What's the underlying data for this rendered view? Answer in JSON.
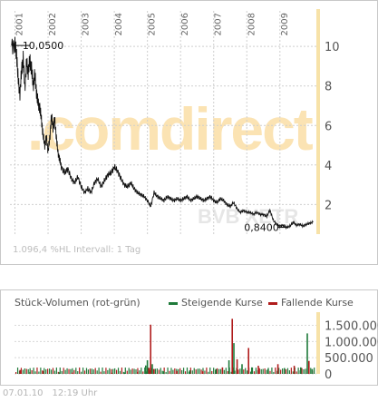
{
  "chart_data": [
    {
      "type": "line",
      "x_ticks": [
        "2001",
        "2002",
        "2003",
        "2004",
        "2005",
        "2006",
        "2007",
        "2008",
        "2009"
      ],
      "y_ticks": [
        2,
        4,
        6,
        8,
        10
      ],
      "ylim": [
        0.5,
        11.8
      ],
      "series": [
        {
          "x": [
            2000.9,
            2001.0,
            2001.05,
            2001.1,
            2001.15,
            2001.2,
            2001.25,
            2001.3,
            2001.35,
            2001.4,
            2001.45,
            2001.5,
            2001.55,
            2001.6,
            2001.65,
            2001.7,
            2001.75,
            2001.8,
            2001.85,
            2001.9,
            2001.95,
            2002.0,
            2002.05,
            2002.1,
            2002.15,
            2002.2,
            2002.25,
            2002.3,
            2002.35,
            2002.4,
            2002.5,
            2002.6,
            2002.7,
            2002.8,
            2002.9,
            2003.0,
            2003.1,
            2003.2,
            2003.3,
            2003.4,
            2003.5,
            2003.6,
            2003.7,
            2003.8,
            2003.9,
            2004.0,
            2004.1,
            2004.2,
            2004.3,
            2004.4,
            2004.5,
            2004.6,
            2004.7,
            2004.8,
            2004.9,
            2005.0,
            2005.1,
            2005.2,
            2005.3,
            2005.4,
            2005.5,
            2005.6,
            2005.7,
            2005.8,
            2005.9,
            2006.0,
            2006.1,
            2006.2,
            2006.3,
            2006.4,
            2006.5,
            2006.6,
            2006.7,
            2006.8,
            2006.9,
            2007.0,
            2007.1,
            2007.2,
            2007.3,
            2007.4,
            2007.5,
            2007.6,
            2007.7,
            2007.8,
            2007.9,
            2008.0,
            2008.1,
            2008.2,
            2008.3,
            2008.4,
            2008.5,
            2008.6,
            2008.7,
            2008.8,
            2008.9,
            2009.0,
            2009.1,
            2009.2,
            2009.3,
            2009.4,
            2009.5,
            2009.6,
            2009.7,
            2009.8,
            2009.9,
            2010.0
          ],
          "y": [
            10.05,
            10.05,
            9.6,
            8.3,
            7.6,
            8.8,
            9.4,
            7.9,
            9.2,
            8.7,
            9.3,
            8.9,
            8.0,
            8.6,
            7.7,
            7.1,
            6.9,
            6.3,
            5.5,
            5.0,
            5.4,
            4.7,
            5.3,
            6.5,
            5.9,
            6.3,
            5.4,
            4.6,
            4.3,
            3.9,
            3.6,
            3.8,
            3.3,
            3.1,
            3.4,
            2.9,
            2.6,
            2.8,
            2.6,
            3.1,
            3.3,
            2.9,
            3.2,
            3.5,
            3.6,
            3.9,
            3.7,
            3.3,
            3.0,
            2.9,
            3.1,
            2.8,
            2.6,
            2.5,
            2.4,
            2.2,
            1.9,
            2.6,
            2.4,
            2.3,
            2.2,
            2.4,
            2.3,
            2.2,
            2.3,
            2.2,
            2.3,
            2.4,
            2.2,
            2.3,
            2.4,
            2.3,
            2.2,
            2.3,
            2.4,
            2.2,
            2.1,
            2.3,
            2.2,
            2.0,
            1.9,
            2.1,
            1.8,
            1.6,
            1.7,
            1.6,
            1.6,
            1.5,
            1.6,
            1.5,
            1.5,
            1.4,
            1.7,
            1.2,
            1.0,
            0.9,
            0.95,
            0.84,
            0.9,
            1.1,
            0.95,
            1.0,
            0.9,
            1.0,
            1.05,
            1.1
          ],
          "high_label": "10,0500",
          "low_label": "0,8400"
        }
      ],
      "info_text": "1.096,4 %HL Intervall: 1 Tag",
      "watermark": ".comdirect",
      "watermark_sub": "BVB XETR"
    },
    {
      "type": "bar",
      "title": "Stück-Volumen (rot-grün)",
      "legend": [
        {
          "name": "Steigende Kurse",
          "color": "#1f7a3a"
        },
        {
          "name": "Fallende Kurse",
          "color": "#b01c1c"
        }
      ],
      "y_ticks": [
        "1.500.000",
        "1.000.000",
        "500.000",
        "0"
      ],
      "y_tick_values": [
        1500000,
        1000000,
        500000,
        0
      ],
      "ylim": [
        0,
        1850000
      ],
      "bars": [
        {
          "x": 2001.0,
          "v": 120000,
          "d": "down"
        },
        {
          "x": 2001.3,
          "v": 60000,
          "d": "up"
        },
        {
          "x": 2001.7,
          "v": 90000,
          "d": "down"
        },
        {
          "x": 2002.2,
          "v": 50000,
          "d": "up"
        },
        {
          "x": 2002.6,
          "v": 40000,
          "d": "down"
        },
        {
          "x": 2003.2,
          "v": 30000,
          "d": "up"
        },
        {
          "x": 2003.8,
          "v": 35000,
          "d": "down"
        },
        {
          "x": 2004.2,
          "v": 45000,
          "d": "up"
        },
        {
          "x": 2004.6,
          "v": 60000,
          "d": "down"
        },
        {
          "x": 2004.85,
          "v": 260000,
          "d": "up"
        },
        {
          "x": 2004.9,
          "v": 420000,
          "d": "up"
        },
        {
          "x": 2004.95,
          "v": 180000,
          "d": "down"
        },
        {
          "x": 2005.0,
          "v": 1520000,
          "d": "down"
        },
        {
          "x": 2005.05,
          "v": 300000,
          "d": "up"
        },
        {
          "x": 2005.1,
          "v": 150000,
          "d": "down"
        },
        {
          "x": 2005.4,
          "v": 80000,
          "d": "up"
        },
        {
          "x": 2005.8,
          "v": 90000,
          "d": "down"
        },
        {
          "x": 2006.2,
          "v": 110000,
          "d": "up"
        },
        {
          "x": 2006.6,
          "v": 80000,
          "d": "down"
        },
        {
          "x": 2007.0,
          "v": 150000,
          "d": "up"
        },
        {
          "x": 2007.2,
          "v": 200000,
          "d": "down"
        },
        {
          "x": 2007.4,
          "v": 420000,
          "d": "up"
        },
        {
          "x": 2007.5,
          "v": 1700000,
          "d": "down"
        },
        {
          "x": 2007.55,
          "v": 950000,
          "d": "up"
        },
        {
          "x": 2007.65,
          "v": 450000,
          "d": "down"
        },
        {
          "x": 2007.8,
          "v": 300000,
          "d": "up"
        },
        {
          "x": 2008.0,
          "v": 800000,
          "d": "down"
        },
        {
          "x": 2008.1,
          "v": 200000,
          "d": "up"
        },
        {
          "x": 2008.3,
          "v": 250000,
          "d": "down"
        },
        {
          "x": 2008.6,
          "v": 150000,
          "d": "up"
        },
        {
          "x": 2008.9,
          "v": 300000,
          "d": "down"
        },
        {
          "x": 2009.1,
          "v": 180000,
          "d": "up"
        },
        {
          "x": 2009.4,
          "v": 250000,
          "d": "down"
        },
        {
          "x": 2009.6,
          "v": 200000,
          "d": "up"
        },
        {
          "x": 2009.8,
          "v": 1250000,
          "d": "up"
        },
        {
          "x": 2009.85,
          "v": 400000,
          "d": "down"
        },
        {
          "x": 2009.95,
          "v": 150000,
          "d": "up"
        }
      ]
    }
  ],
  "footer": {
    "date": "07.01.10",
    "time": "12:19 Uhr"
  }
}
